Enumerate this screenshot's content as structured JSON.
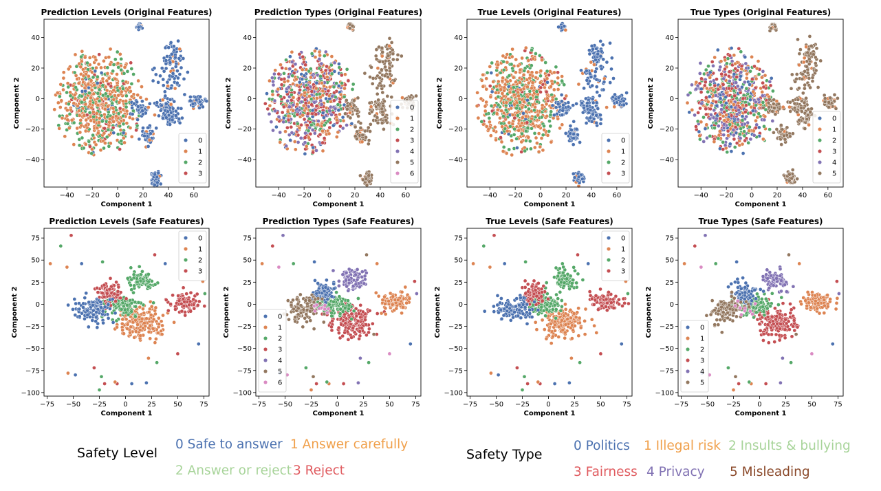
{
  "palette": {
    "0": "#4c72b0",
    "1": "#dd8452",
    "2": "#55a868",
    "3": "#c44e52",
    "4": "#8172b3",
    "5": "#937860",
    "6": "#da8bc3"
  },
  "chart_data": [
    {
      "type": "scatter",
      "title": "Prediction Levels (Original Features)",
      "xlabel": "Component 1",
      "ylabel": "Component 2",
      "xlim": [
        -58,
        72
      ],
      "ylim": [
        -58,
        52
      ],
      "xticks": [
        -40,
        -20,
        0,
        20,
        40,
        60
      ],
      "yticks": [
        -40,
        -20,
        0,
        20,
        40
      ],
      "legend": [
        "0",
        "1",
        "2",
        "3"
      ],
      "legend_loc": "lower right",
      "feature_space": "original",
      "coloring": "level"
    },
    {
      "type": "scatter",
      "title": "Prediction Types (Original Features)",
      "xlabel": "Component 1",
      "ylabel": "Component 2",
      "xlim": [
        -58,
        72
      ],
      "ylim": [
        -58,
        52
      ],
      "xticks": [
        -40,
        -20,
        0,
        20,
        40,
        60
      ],
      "yticks": [
        -40,
        -20,
        0,
        20,
        40
      ],
      "legend": [
        "0",
        "1",
        "2",
        "3",
        "4",
        "5",
        "6"
      ],
      "legend_loc": "lower right",
      "feature_space": "original",
      "coloring": "type"
    },
    {
      "type": "scatter",
      "title": "True Levels (Original Features)",
      "xlabel": "Component 1",
      "ylabel": "Component 2",
      "xlim": [
        -58,
        72
      ],
      "ylim": [
        -58,
        52
      ],
      "xticks": [
        -40,
        -20,
        0,
        20,
        40,
        60
      ],
      "yticks": [
        -40,
        -20,
        0,
        20,
        40
      ],
      "legend": [
        "0",
        "1",
        "2",
        "3"
      ],
      "legend_loc": "lower right",
      "feature_space": "original",
      "coloring": "level"
    },
    {
      "type": "scatter",
      "title": "True Types (Original Features)",
      "xlabel": "Component 1",
      "ylabel": "Component 2",
      "xlim": [
        -58,
        72
      ],
      "ylim": [
        -58,
        52
      ],
      "xticks": [
        -40,
        -20,
        0,
        20,
        40,
        60
      ],
      "yticks": [
        -40,
        -20,
        0,
        20,
        40
      ],
      "legend": [
        "0",
        "1",
        "2",
        "3",
        "4",
        "5"
      ],
      "legend_loc": "lower right",
      "feature_space": "original",
      "coloring": "type"
    },
    {
      "type": "scatter",
      "title": "Prediction Levels (Safe Features)",
      "xlabel": "Component 1",
      "ylabel": "Component 2",
      "xlim": [
        -78,
        80
      ],
      "ylim": [
        -104,
        86
      ],
      "xticks": [
        -75,
        -50,
        -25,
        0,
        25,
        50,
        75
      ],
      "yticks": [
        -100,
        -75,
        -50,
        -25,
        0,
        25,
        50,
        75
      ],
      "legend": [
        "0",
        "1",
        "2",
        "3"
      ],
      "legend_loc": "upper right",
      "feature_space": "safe",
      "coloring": "level"
    },
    {
      "type": "scatter",
      "title": "Prediction Types (Safe Features)",
      "xlabel": "Component 1",
      "ylabel": "Component 2",
      "xlim": [
        -78,
        80
      ],
      "ylim": [
        -104,
        86
      ],
      "xticks": [
        -75,
        -50,
        -25,
        0,
        25,
        50,
        75
      ],
      "yticks": [
        -100,
        -75,
        -50,
        -25,
        0,
        25,
        50,
        75
      ],
      "legend": [
        "0",
        "1",
        "2",
        "3",
        "4",
        "5",
        "6"
      ],
      "legend_loc": "lower left",
      "feature_space": "safe",
      "coloring": "type"
    },
    {
      "type": "scatter",
      "title": "True Levels (Safe Features)",
      "xlabel": "Component 1",
      "ylabel": "Component 2",
      "xlim": [
        -78,
        80
      ],
      "ylim": [
        -104,
        86
      ],
      "xticks": [
        -75,
        -50,
        -25,
        0,
        25,
        50,
        75
      ],
      "yticks": [
        -100,
        -75,
        -50,
        -25,
        0,
        25,
        50,
        75
      ],
      "legend": [
        "0",
        "1",
        "2",
        "3"
      ],
      "legend_loc": "upper right",
      "feature_space": "safe",
      "coloring": "level"
    },
    {
      "type": "scatter",
      "title": "True Types (Safe Features)",
      "xlabel": "Component 1",
      "ylabel": "Component 2",
      "xlim": [
        -78,
        80
      ],
      "ylim": [
        -104,
        86
      ],
      "xticks": [
        -75,
        -50,
        -25,
        0,
        25,
        50,
        75
      ],
      "yticks": [
        -100,
        -75,
        -50,
        -25,
        0,
        25,
        50,
        75
      ],
      "legend": [
        "0",
        "1",
        "2",
        "3",
        "4",
        "5"
      ],
      "legend_loc": "lower left",
      "feature_space": "safe",
      "coloring": "type"
    }
  ],
  "level_legend": {
    "label": "Safety Level",
    "items": [
      {
        "text": "0 Safe to answer",
        "color": "#4c72b0"
      },
      {
        "text": "1 Answer carefully",
        "color": "#f0a04b"
      },
      {
        "text": "2 Answer or reject",
        "color": "#a8d49a"
      },
      {
        "text": "3 Reject",
        "color": "#e05c60"
      }
    ]
  },
  "type_legend": {
    "label": "Safety Type",
    "items": [
      {
        "text": "0 Politics",
        "color": "#4c72b0"
      },
      {
        "text": "1 Illegal risk",
        "color": "#f0a04b"
      },
      {
        "text": "2 Insults & bullying",
        "color": "#a8d49a"
      },
      {
        "text": "3 Fairness",
        "color": "#e05c60"
      },
      {
        "text": "4 Privacy",
        "color": "#8172b3"
      },
      {
        "text": "5 Misleading",
        "color": "#8b4a2b"
      }
    ]
  }
}
